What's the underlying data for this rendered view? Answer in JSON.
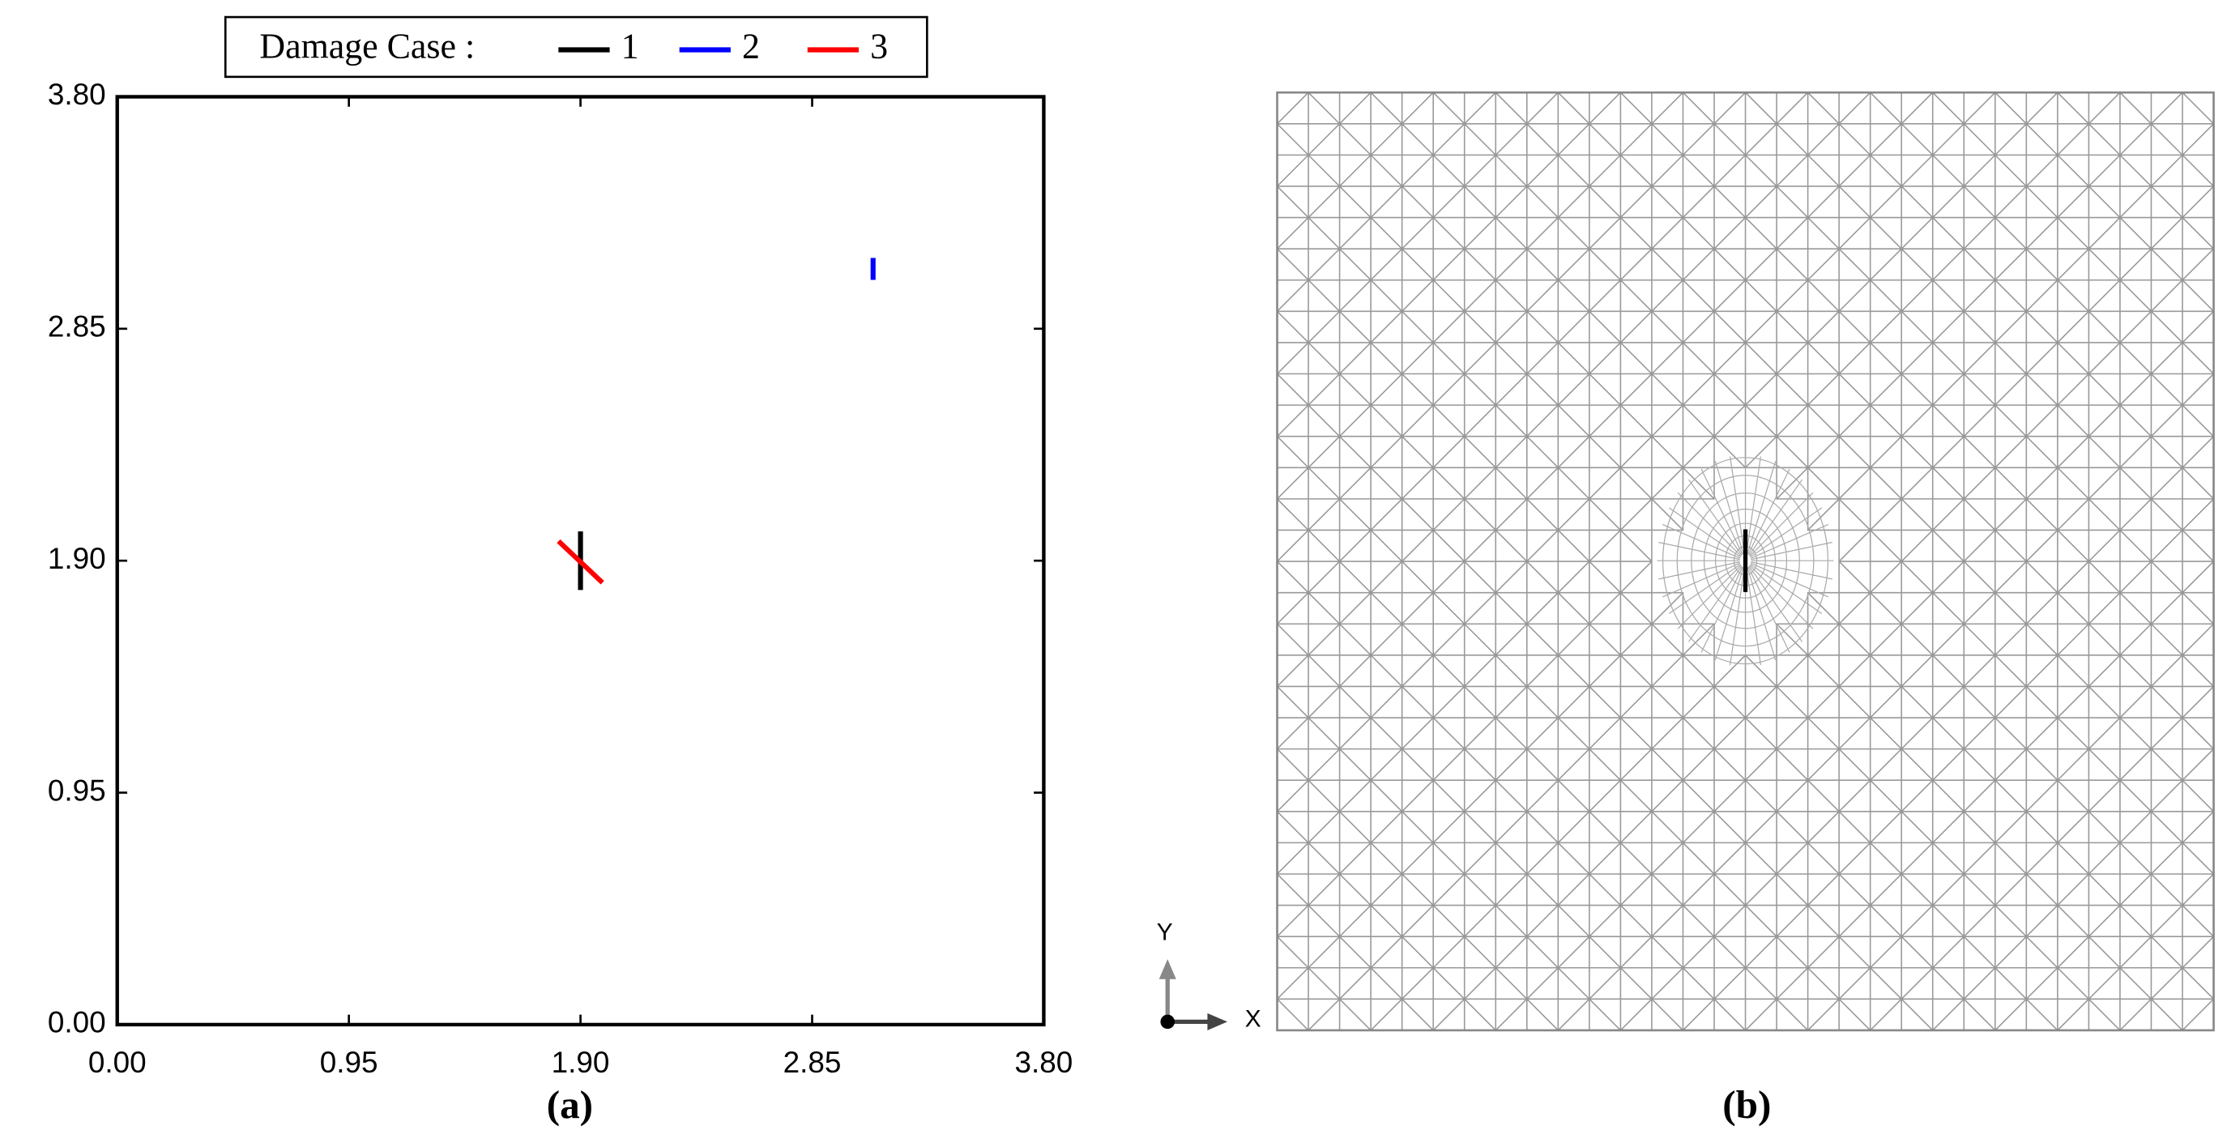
{
  "chart_data": {
    "type": "segment",
    "legend_title": "Damage Case :",
    "legend": "top",
    "xlim": [
      0,
      3.8
    ],
    "ylim": [
      0,
      3.8
    ],
    "xticks": [
      {
        "value": 0,
        "label": "0.00"
      },
      0.95,
      {
        "value": 1.9,
        "label": "1.90"
      },
      2.85,
      {
        "value": 3.8,
        "label": "3.80"
      }
    ],
    "yticks": [
      {
        "value": 0,
        "label": "0.00"
      },
      0.95,
      {
        "value": 1.9,
        "label": "1.90"
      },
      2.85,
      {
        "value": 3.8,
        "label": "3.80"
      }
    ],
    "grid": false,
    "series": [
      {
        "name": "1",
        "color": "#000000",
        "x": [
          1.9,
          1.9
        ],
        "values": [
          1.78,
          2.02
        ]
      },
      {
        "name": "2",
        "color": "#0000ff",
        "x": [
          3.1,
          3.1
        ],
        "values": [
          3.05,
          3.14
        ]
      },
      {
        "name": "3",
        "color": "#ff0000",
        "x": [
          1.81,
          1.99
        ],
        "values": [
          1.98,
          1.81
        ]
      }
    ]
  },
  "panels": {
    "a": "(a)",
    "b": "(b)"
  },
  "mesh_axes": {
    "y": "Y",
    "x": "X"
  }
}
